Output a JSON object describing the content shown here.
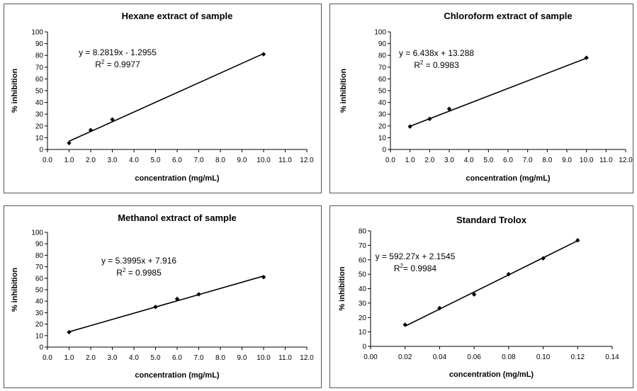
{
  "chart_data": [
    {
      "type": "scatter",
      "title": "Hexane extract of sample",
      "xlabel": "concentration (mg/mL)",
      "ylabel": "% inhibition",
      "xlim": [
        0,
        12
      ],
      "ylim": [
        0,
        100
      ],
      "xticks": [
        "0.0",
        "1.0",
        "2.0",
        "3.0",
        "4.0",
        "5.0",
        "6.0",
        "7.0",
        "8.0",
        "9.0",
        "10.0",
        "11.0",
        "12.0"
      ],
      "yticks": [
        "0",
        "10",
        "20",
        "30",
        "40",
        "50",
        "60",
        "70",
        "80",
        "90",
        "100"
      ],
      "points": [
        {
          "x": 1,
          "y": 5.5
        },
        {
          "x": 2,
          "y": 16.5
        },
        {
          "x": 3,
          "y": 25.5
        },
        {
          "x": 10,
          "y": 81
        }
      ],
      "trendline": {
        "slope": 8.2819,
        "intercept": -1.2955
      },
      "equation": "y = 8.2819x - 1.2955",
      "r2_prefix": "R",
      "r2_sup": "2",
      "r2_suffix": " = 0.9977",
      "grid": false
    },
    {
      "type": "scatter",
      "title": "Chloroform extract of sample",
      "xlabel": "concentration (mg/mL)",
      "ylabel": "% inhibition",
      "xlim": [
        0,
        12
      ],
      "ylim": [
        0,
        100
      ],
      "xticks": [
        "0.0",
        "1.0",
        "2.0",
        "3.0",
        "4.0",
        "5.0",
        "6.0",
        "7.0",
        "8.0",
        "9.0",
        "10.0",
        "11.0",
        "12.0"
      ],
      "yticks": [
        "0",
        "10",
        "20",
        "30",
        "40",
        "50",
        "60",
        "70",
        "80",
        "90",
        "100"
      ],
      "points": [
        {
          "x": 1,
          "y": 19.5
        },
        {
          "x": 2,
          "y": 26
        },
        {
          "x": 3,
          "y": 34.5
        },
        {
          "x": 10,
          "y": 78
        }
      ],
      "trendline": {
        "slope": 6.438,
        "intercept": 13.288
      },
      "equation": "y = 6.438x + 13.288",
      "r2_prefix": "R",
      "r2_sup": "2",
      "r2_suffix": " = 0.9983",
      "grid": false
    },
    {
      "type": "scatter",
      "title": "Methanol extract of sample",
      "xlabel": "concentration (mg/mL)",
      "ylabel": "% inhibition",
      "xlim": [
        0,
        12
      ],
      "ylim": [
        0,
        100
      ],
      "xticks": [
        "0.0",
        "1.0",
        "2.0",
        "3.0",
        "4.0",
        "5.0",
        "6.0",
        "7.0",
        "8.0",
        "9.0",
        "10.0",
        "11.0",
        "12.0"
      ],
      "yticks": [
        "0",
        "10",
        "20",
        "30",
        "40",
        "50",
        "60",
        "70",
        "80",
        "90",
        "100"
      ],
      "points": [
        {
          "x": 1,
          "y": 13
        },
        {
          "x": 5,
          "y": 35
        },
        {
          "x": 6,
          "y": 42
        },
        {
          "x": 7,
          "y": 46
        },
        {
          "x": 10,
          "y": 61
        }
      ],
      "trendline": {
        "slope": 5.3995,
        "intercept": 7.916
      },
      "equation": "y = 5.3995x + 7.916",
      "r2_prefix": "R",
      "r2_sup": "2",
      "r2_suffix": " = 0.9985",
      "grid": false
    },
    {
      "type": "scatter",
      "title": "Standard Trolox",
      "xlabel": "concentration (mg/mL)",
      "ylabel": "% inhibition",
      "xlim": [
        0,
        0.14
      ],
      "ylim": [
        0,
        80
      ],
      "xticks": [
        "0.00",
        "0.02",
        "0.04",
        "0.06",
        "0.08",
        "0.10",
        "0.12",
        "0.14"
      ],
      "yticks": [
        "0",
        "10",
        "20",
        "30",
        "40",
        "50",
        "60",
        "70",
        "80"
      ],
      "points": [
        {
          "x": 0.02,
          "y": 15
        },
        {
          "x": 0.04,
          "y": 26.5
        },
        {
          "x": 0.06,
          "y": 36
        },
        {
          "x": 0.08,
          "y": 50
        },
        {
          "x": 0.1,
          "y": 61
        },
        {
          "x": 0.12,
          "y": 73.5
        }
      ],
      "trendline": {
        "slope": 592.27,
        "intercept": 2.1545
      },
      "equation": "y = 592.27x + 2.1545",
      "r2_prefix": "R",
      "r2_sup": "2",
      "r2_suffix": "= 0.9984",
      "grid": false
    }
  ]
}
